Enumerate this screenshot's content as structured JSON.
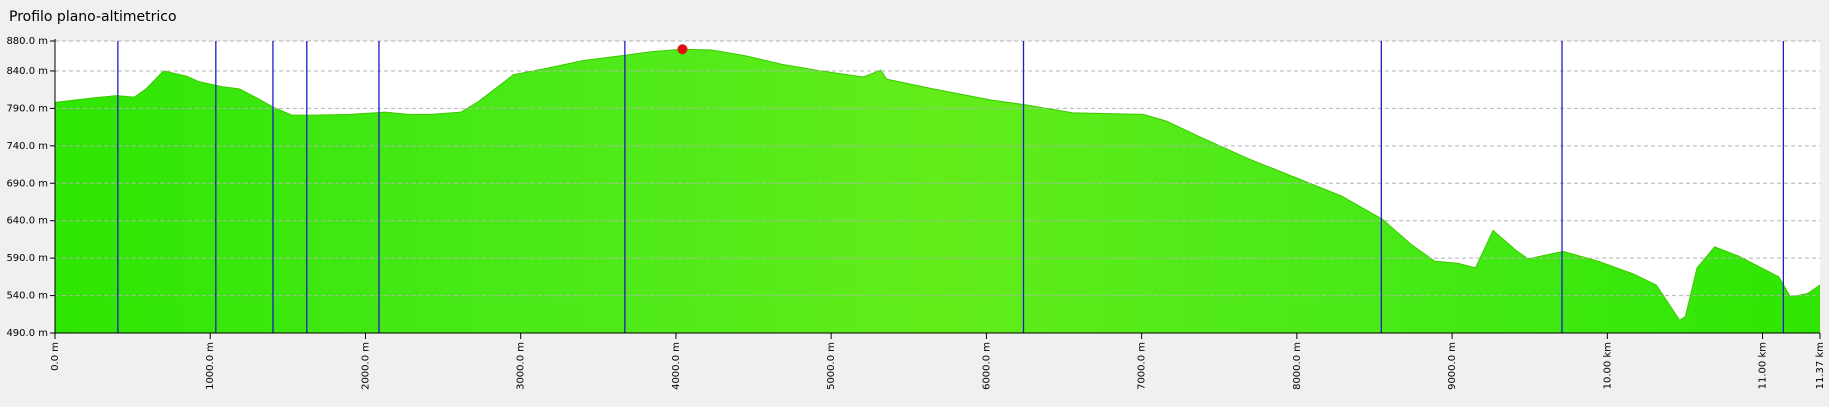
{
  "chart_data": {
    "type": "area",
    "title": "Profilo plano-altimetrico",
    "x": [
      0,
      248,
      398,
      511,
      586,
      699,
      849,
      924,
      1074,
      1187,
      1300,
      1412,
      1525,
      1675,
      1901,
      2126,
      2277,
      2427,
      2615,
      2727,
      2953,
      3178,
      3403,
      3674,
      3854,
      4042,
      4230,
      4455,
      4681,
      4906,
      5207,
      5320,
      5357,
      5657,
      6033,
      6243,
      6559,
      7010,
      7160,
      7385,
      7686,
      7986,
      8287,
      8550,
      8738,
      8888,
      9039,
      9151,
      9264,
      9414,
      9489,
      9715,
      9940,
      10166,
      10316,
      10466,
      10503,
      10578,
      10691,
      10842,
      10992,
      11105,
      11180,
      11293,
      11370
    ],
    "values": [
      798,
      804,
      807,
      805,
      816,
      840,
      833,
      826,
      819,
      816,
      804,
      791,
      781,
      781,
      782,
      785,
      782,
      782,
      785,
      799,
      835,
      844,
      854,
      861,
      866,
      869,
      868,
      860,
      849,
      841,
      832,
      841,
      829,
      816,
      801,
      795,
      784,
      782,
      773,
      751,
      723,
      698,
      673,
      642,
      608,
      586,
      583,
      577,
      627,
      600,
      589,
      599,
      586,
      569,
      554,
      507,
      512,
      577,
      605,
      593,
      577,
      565,
      538,
      543,
      554
    ],
    "color": "#2ee600",
    "xlim": [
      0,
      11370
    ],
    "ylim": [
      490,
      880
    ],
    "xticks": [
      {
        "value": 0,
        "label": "0.0 m"
      },
      {
        "value": 1000,
        "label": "1000.0 m"
      },
      {
        "value": 2000,
        "label": "2000.0 m"
      },
      {
        "value": 3000,
        "label": "3000.0 m"
      },
      {
        "value": 4000,
        "label": "4000.0 m"
      },
      {
        "value": 5000,
        "label": "5000.0 m"
      },
      {
        "value": 6000,
        "label": "6000.0 m"
      },
      {
        "value": 7000,
        "label": "7000.0 m"
      },
      {
        "value": 8000,
        "label": "8000.0 m"
      },
      {
        "value": 9000,
        "label": "9000.0 m"
      },
      {
        "value": 10000,
        "label": "10.00 km"
      },
      {
        "value": 11000,
        "label": "11.00 km"
      },
      {
        "value": 11370,
        "label": "11.37 km"
      }
    ],
    "yticks": [
      {
        "value": 490,
        "label": "490.0 m"
      },
      {
        "value": 540,
        "label": "540.0 m"
      },
      {
        "value": 590,
        "label": "590.0 m"
      },
      {
        "value": 640,
        "label": "640.0 m"
      },
      {
        "value": 690,
        "label": "690.0 m"
      },
      {
        "value": 740,
        "label": "740.0 m"
      },
      {
        "value": 790,
        "label": "790.0 m"
      },
      {
        "value": 840,
        "label": "840.0 m"
      },
      {
        "value": 880,
        "label": "880.0 m"
      }
    ],
    "grid": true,
    "markers": [
      405,
      1036,
      1404,
      1622,
      2087,
      3671,
      6239,
      8544,
      9708,
      11134
    ],
    "marker_color": "#1c1cc8",
    "highlight": {
      "x": 4042,
      "y": 869,
      "color": "#e01010"
    }
  }
}
